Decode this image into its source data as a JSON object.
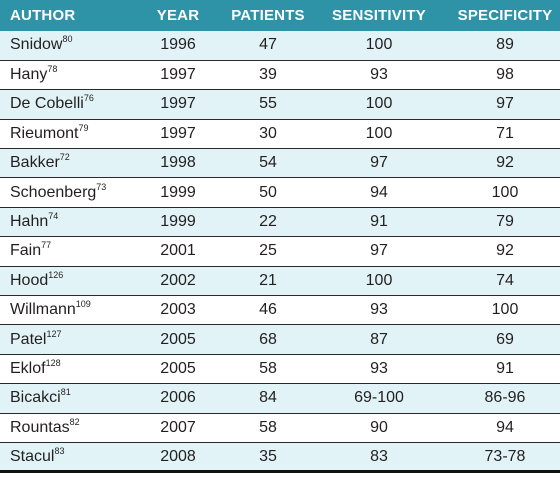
{
  "headers": {
    "author": "AUTHOR",
    "year": "YEAR",
    "patients": "PATIENTS",
    "sensitivity": "SENSITIVITY",
    "specificity": "SPECIFICITY"
  },
  "rows": [
    {
      "author": "Snidow",
      "ref": "80",
      "year": "1996",
      "patients": "47",
      "sensitivity": "100",
      "specificity": "89"
    },
    {
      "author": "Hany",
      "ref": "78",
      "year": "1997",
      "patients": "39",
      "sensitivity": "93",
      "specificity": "98"
    },
    {
      "author": "De Cobelli",
      "ref": "76",
      "year": "1997",
      "patients": "55",
      "sensitivity": "100",
      "specificity": "97"
    },
    {
      "author": "Rieumont",
      "ref": "79",
      "year": "1997",
      "patients": "30",
      "sensitivity": "100",
      "specificity": "71"
    },
    {
      "author": "Bakker",
      "ref": "72",
      "year": "1998",
      "patients": "54",
      "sensitivity": "97",
      "specificity": "92"
    },
    {
      "author": "Schoenberg",
      "ref": "73",
      "year": "1999",
      "patients": "50",
      "sensitivity": "94",
      "specificity": "100"
    },
    {
      "author": "Hahn",
      "ref": "74",
      "year": "1999",
      "patients": "22",
      "sensitivity": "91",
      "specificity": "79"
    },
    {
      "author": "Fain",
      "ref": "77",
      "year": "2001",
      "patients": "25",
      "sensitivity": "97",
      "specificity": "92"
    },
    {
      "author": "Hood",
      "ref": "126",
      "year": "2002",
      "patients": "21",
      "sensitivity": "100",
      "specificity": "74"
    },
    {
      "author": "Willmann",
      "ref": "109",
      "year": "2003",
      "patients": "46",
      "sensitivity": "93",
      "specificity": "100"
    },
    {
      "author": "Patel",
      "ref": "127",
      "year": "2005",
      "patients": "68",
      "sensitivity": "87",
      "specificity": "69"
    },
    {
      "author": "Eklof",
      "ref": "128",
      "year": "2005",
      "patients": "58",
      "sensitivity": "93",
      "specificity": "91"
    },
    {
      "author": "Bicakci",
      "ref": "81",
      "year": "2006",
      "patients": "84",
      "sensitivity": "69-100",
      "specificity": "86-96"
    },
    {
      "author": "Rountas",
      "ref": "82",
      "year": "2007",
      "patients": "58",
      "sensitivity": "90",
      "specificity": "94"
    },
    {
      "author": "Stacul",
      "ref": "83",
      "year": "2008",
      "patients": "35",
      "sensitivity": "83",
      "specificity": "73-78"
    }
  ],
  "colors": {
    "header_bg": "#2f93a8",
    "header_text": "#ffffff",
    "stripe": "#e1f3f6",
    "text": "#231f20"
  }
}
